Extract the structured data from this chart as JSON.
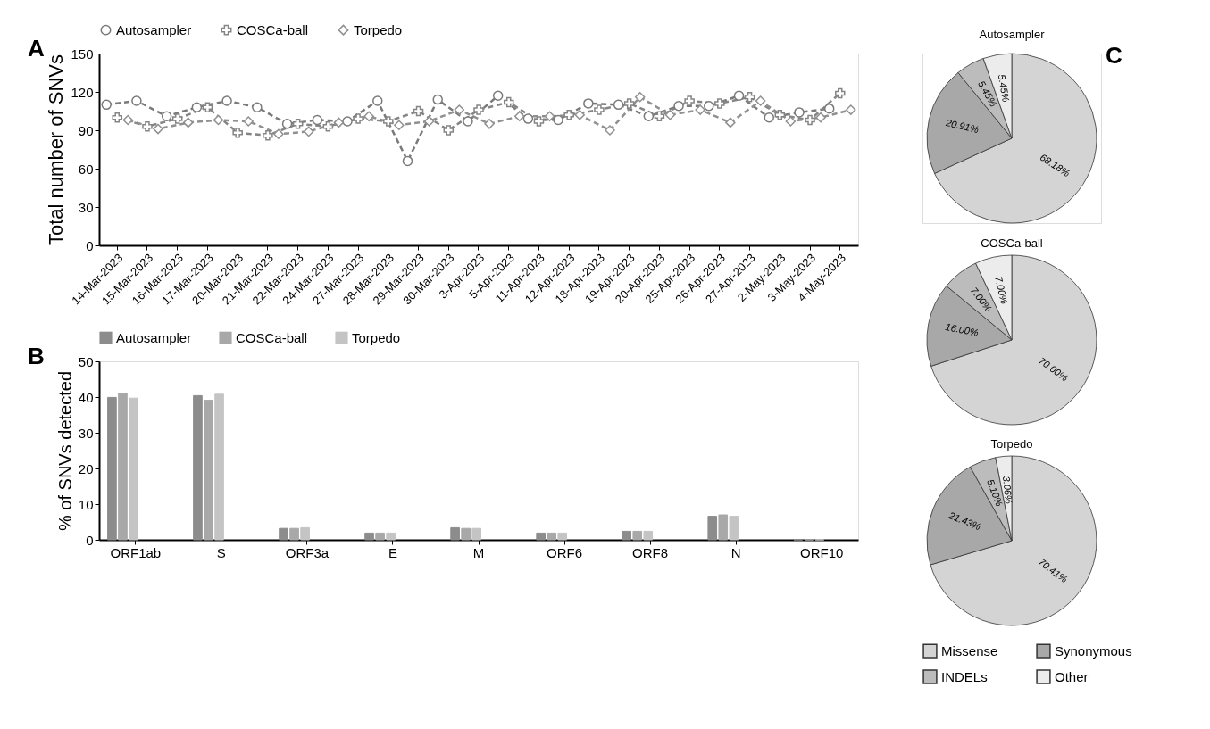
{
  "chart_data": [
    {
      "type": "line",
      "ylabel": "Total number of SNVs",
      "annotations": [
        "A"
      ],
      "categories": [
        "14-Mar-2023",
        "15-Mar-2023",
        "16-Mar-2023",
        "17-Mar-2023",
        "20-Mar-2023",
        "21-Mar-2023",
        "22-Mar-2023",
        "24-Mar-2023",
        "27-Mar-2023",
        "28-Mar-2023",
        "29-Mar-2023",
        "30-Mar-2023",
        "3-Apr-2023",
        "5-Apr-2023",
        "11-Apr-2023",
        "12-Apr-2023",
        "18-Apr-2023",
        "19-Apr-2023",
        "20-Apr-2023",
        "25-Apr-2023",
        "26-Apr-2023",
        "27-Apr-2023",
        "2-May-2023",
        "3-May-2023",
        "4-May-2023"
      ],
      "series": [
        {
          "name": "Autosampler",
          "color": "#7a7a7a",
          "marker": "circle",
          "values": [
            110,
            113,
            101,
            108,
            113,
            108,
            95,
            98,
            97,
            113,
            66,
            114,
            97,
            117,
            99,
            98,
            111,
            110,
            101,
            109,
            109,
            117,
            100,
            104,
            107
          ]
        },
        {
          "name": "COSCa-ball",
          "color": "#858585",
          "marker": "cross",
          "values": [
            100,
            93,
            99,
            108,
            88,
            86,
            95,
            93,
            99,
            97,
            105,
            90,
            106,
            112,
            97,
            102,
            106,
            111,
            101,
            113,
            111,
            116,
            102,
            98,
            119
          ]
        },
        {
          "name": "Torpedo",
          "color": "#909090",
          "marker": "diamond",
          "values": [
            98,
            91,
            96,
            98,
            97,
            87,
            89,
            96,
            101,
            94,
            97,
            106,
            95,
            101,
            101,
            102,
            90,
            116,
            102,
            106,
            96,
            113,
            97,
            100,
            106
          ]
        }
      ],
      "ylim": [
        0,
        150
      ],
      "yticks": [
        0,
        30,
        60,
        90,
        120,
        150
      ],
      "grid": false,
      "legend": "top",
      "line_style": "dashed"
    },
    {
      "type": "bar",
      "ylabel": "% of SNVs detected",
      "annotations": [
        "B"
      ],
      "categories": [
        "ORF1ab",
        "S",
        "ORF3a",
        "E",
        "M",
        "ORF6",
        "ORF8",
        "N",
        "ORF10"
      ],
      "series": [
        {
          "name": "Autosampler",
          "color": "#8c8c8c",
          "values": [
            39.9,
            40.4,
            3.2,
            1.9,
            3.4,
            1.9,
            2.4,
            6.6,
            0
          ]
        },
        {
          "name": "COSCa-ball",
          "color": "#a8a8a8",
          "values": [
            41.1,
            39.1,
            3.2,
            1.9,
            3.2,
            1.9,
            2.4,
            7.0,
            0
          ]
        },
        {
          "name": "Torpedo",
          "color": "#c4c4c4",
          "values": [
            39.7,
            40.8,
            3.4,
            1.9,
            3.2,
            1.9,
            2.4,
            6.6,
            0
          ]
        }
      ],
      "ylim": [
        0,
        50
      ],
      "yticks": [
        0,
        10,
        20,
        30,
        40,
        50
      ],
      "grid": false,
      "legend": "top"
    },
    {
      "type": "pie",
      "title": "Autosampler",
      "annotations": [
        "C"
      ],
      "categories": [
        "Missense",
        "Synonymous",
        "INDELs",
        "Other"
      ],
      "values": [
        68.18,
        20.91,
        5.45,
        5.45
      ],
      "value_labels": [
        "68.18%",
        "20.91%",
        "5.45%",
        "5.45%"
      ],
      "colors": [
        "#d4d4d4",
        "#a8a8a8",
        "#bcbcbc",
        "#ececec"
      ],
      "legend": "bottom"
    },
    {
      "type": "pie",
      "title": "COSCa-ball",
      "categories": [
        null,
        null,
        null,
        null
      ],
      "values": [
        70,
        16,
        7,
        7
      ],
      "value_labels": [
        "70.00%",
        "16.00%",
        "7.00%",
        "7.00%"
      ],
      "colors": [
        "#d4d4d4",
        "#a8a8a8",
        "#bcbcbc",
        "#ececec"
      ]
    },
    {
      "type": "pie",
      "title": "Torpedo",
      "categories": [
        null,
        null,
        null,
        null
      ],
      "values": [
        70.41,
        21.43,
        5.1,
        3.06
      ],
      "value_labels": [
        "70.41%",
        "21.43%",
        "5.10%",
        "3.06%"
      ],
      "colors": [
        "#d4d4d4",
        "#a8a8a8",
        "#bcbcbc",
        "#ececec"
      ]
    }
  ]
}
